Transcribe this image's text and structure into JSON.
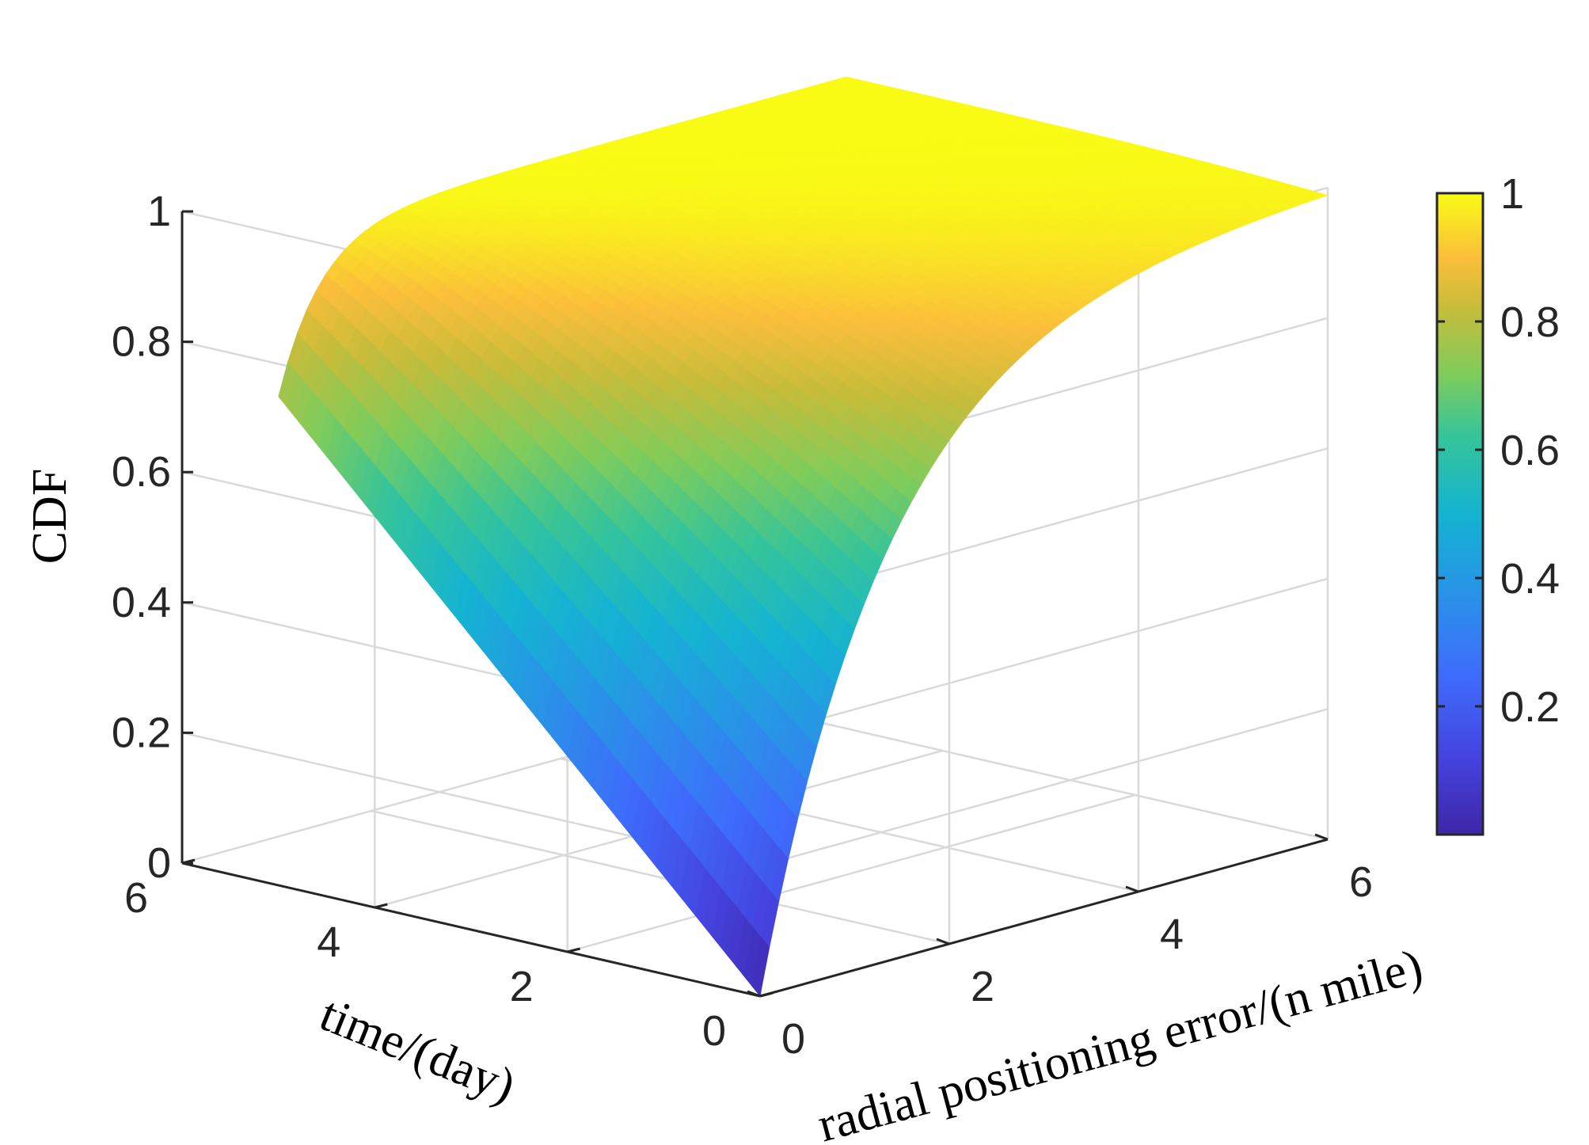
{
  "chart_data": {
    "type": "surface",
    "xlabel": "radial positioning error/(n mile)",
    "ylabel": "time/(day)",
    "zlabel": "CDF",
    "xlim": [
      0,
      6
    ],
    "ylim": [
      0,
      6
    ],
    "zlim": [
      0,
      1
    ],
    "x_ticks": [
      0,
      2,
      4,
      6
    ],
    "y_ticks": [
      0,
      2,
      4,
      6
    ],
    "z_ticks": [
      0,
      0.2,
      0.4,
      0.6,
      0.8,
      1
    ],
    "x_tick_labels": [
      "0",
      "2",
      "4",
      "6"
    ],
    "y_tick_labels": [
      "0",
      "2",
      "4",
      "6"
    ],
    "z_tick_labels": [
      "0",
      "0.2",
      "0.4",
      "0.6",
      "0.8",
      "1"
    ],
    "grid": true,
    "colormap": "parula",
    "colorbar": {
      "position": "right",
      "ticks": [
        0.2,
        0.4,
        0.6,
        0.8,
        1
      ],
      "tick_labels": [
        "0.2",
        "0.4",
        "0.6",
        "0.8",
        "1"
      ],
      "range": [
        0,
        1
      ]
    },
    "surface_samples": {
      "time": [
        0,
        1,
        2,
        3,
        4,
        5
      ],
      "cdf_at_error_0": [
        0.0,
        0.15,
        0.3,
        0.45,
        0.6,
        0.73
      ],
      "cdf_at_error_0_2": [
        0.0,
        0.5,
        0.75,
        0.9,
        0.97,
        1.0
      ],
      "cdf_at_error_6": [
        1.0,
        1.0,
        1.0,
        1.0,
        1.0,
        1.0
      ]
    }
  }
}
